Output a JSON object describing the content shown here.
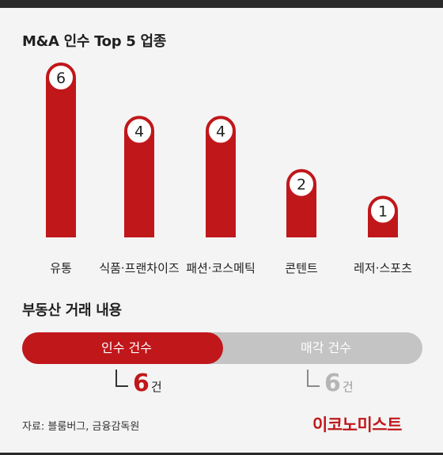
{
  "chart_data": {
    "type": "bar",
    "title": "M&A 인수 Top 5 업종",
    "categories": [
      "유통",
      "식품·프랜차이즈",
      "패션·코스메틱",
      "콘텐트",
      "레저·스포츠"
    ],
    "values": [
      6,
      4,
      4,
      2,
      1
    ],
    "ylim": [
      0,
      6
    ],
    "grid": false,
    "bar_color": "#c0171b"
  },
  "deal": {
    "title": "부동산 거래 내용",
    "buy_label": "인수 건수",
    "sell_label": "매각 건수",
    "buy_count": "6",
    "sell_count": "6",
    "unit": "건",
    "buy_color": "#c0171b",
    "sell_color": "#c4c4c4"
  },
  "footer": {
    "source": "자료: 블룸버그, 금융감독원",
    "logo": "이코노미스트"
  }
}
